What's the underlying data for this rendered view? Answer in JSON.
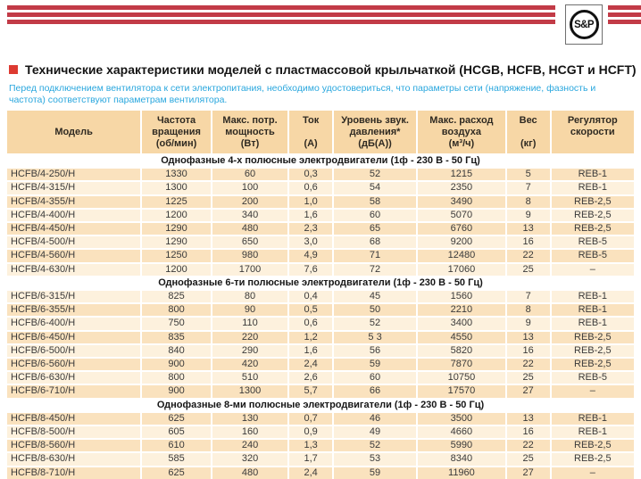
{
  "brand": {
    "logo_text": "S&P"
  },
  "colors": {
    "accent_red": "#c23b47",
    "bullet_red": "#dd3a31",
    "notice_blue": "#2aa7de",
    "header_bg": "#f7d7a6",
    "header_text": "#2f2a22",
    "row_dark": "#fae2be",
    "row_light": "#fdf1dd",
    "cell_text": "#3a3a3a",
    "section_text": "#161616"
  },
  "title": {
    "text": "Технические характеристики моделей с пластмассовой крыльчаткой (HCGB, HCFB, HCGT и HCFT)"
  },
  "notice": "Перед подключением вентилятора к сети электропитания, необходимо удостовериться, что параметры сети (напряжение, фазность и частота) соответствуют параметрам вентилятора.",
  "table": {
    "columns": [
      {
        "id": "model",
        "lines": [
          "Модель"
        ]
      },
      {
        "id": "rpm",
        "lines": [
          "Частота",
          "вращения",
          "(об/мин)"
        ]
      },
      {
        "id": "power",
        "lines": [
          "Макс. потр.",
          "мощность",
          "(Вт)"
        ]
      },
      {
        "id": "current",
        "lines": [
          "Ток",
          "",
          "(А)"
        ]
      },
      {
        "id": "noise",
        "lines": [
          "Уровень звук.",
          "давления*",
          "(дБ(А))"
        ]
      },
      {
        "id": "airflow",
        "lines": [
          "Макс. расход",
          "воздуха",
          "(м³/ч)"
        ]
      },
      {
        "id": "weight",
        "lines": [
          "Вес",
          "",
          "(кг)"
        ]
      },
      {
        "id": "regulator",
        "lines": [
          "Регулятор",
          "скорости",
          ""
        ]
      }
    ],
    "groups": [
      {
        "section": "Однофазные 4-х полюсные электродвигатели (1ф - 230 В - 50 Гц)",
        "rows": [
          [
            "HCFB/4-250/H",
            "1330",
            "60",
            "0,3",
            "52",
            "1215",
            "5",
            "REB-1"
          ],
          [
            "HCFB/4-315/H",
            "1300",
            "100",
            "0,6",
            "54",
            "2350",
            "7",
            "REB-1"
          ],
          [
            "HCFB/4-355/H",
            "1225",
            "200",
            "1,0",
            "58",
            "3490",
            "8",
            "REB-2,5"
          ],
          [
            "HCFB/4-400/H",
            "1200",
            "340",
            "1,6",
            "60",
            "5070",
            "9",
            "REB-2,5"
          ],
          [
            "HCFB/4-450/H",
            "1290",
            "480",
            "2,3",
            "65",
            "6760",
            "13",
            "REB-2,5"
          ],
          [
            "HCFB/4-500/H",
            "1290",
            "650",
            "3,0",
            "68",
            "9200",
            "16",
            "REB-5"
          ],
          [
            "HCFB/4-560/H",
            "1250",
            "980",
            "4,9",
            "71",
            "12480",
            "22",
            "REB-5"
          ],
          [
            "HCFB/4-630/H",
            "1200",
            "1700",
            "7,6",
            "72",
            "17060",
            "25",
            "–"
          ]
        ]
      },
      {
        "section": "Однофазные 6-ти полюсные электродвигатели (1ф - 230 В - 50 Гц)",
        "rows": [
          [
            "HCFB/6-315/H",
            "825",
            "80",
            "0,4",
            "45",
            "1560",
            "7",
            "REB-1"
          ],
          [
            "HCFB/6-355/H",
            "800",
            "90",
            "0,5",
            "50",
            "2210",
            "8",
            "REB-1"
          ],
          [
            "HCFB/6-400/H",
            "750",
            "110",
            "0,6",
            "52",
            "3400",
            "9",
            "REB-1"
          ],
          [
            "HCFB/6-450/H",
            "835",
            "220",
            "1,2",
            "5 3",
            "4550",
            "13",
            "REB-2,5"
          ],
          [
            "HCFB/6-500/H",
            "840",
            "290",
            "1,6",
            "56",
            "5820",
            "16",
            "REB-2,5"
          ],
          [
            "HCFB/6-560/H",
            "900",
            "420",
            "2,4",
            "59",
            "7870",
            "22",
            "REB-2,5"
          ],
          [
            "HCFB/6-630/H",
            "800",
            "510",
            "2,6",
            "60",
            "10750",
            "25",
            "REB-5"
          ],
          [
            "HCFB/6-710/H",
            "900",
            "1300",
            "5,7",
            "66",
            "17570",
            "27",
            "–"
          ]
        ]
      },
      {
        "section": "Однофазные 8-ми полюсные электродвигатели (1ф - 230 В - 50 Гц)",
        "rows": [
          [
            "HCFB/8-450/H",
            "625",
            "130",
            "0,7",
            "46",
            "3500",
            "13",
            "REB-1"
          ],
          [
            "HCFB/8-500/H",
            "605",
            "160",
            "0,9",
            "49",
            "4660",
            "16",
            "REB-1"
          ],
          [
            "HCFB/8-560/H",
            "610",
            "240",
            "1,3",
            "52",
            "5990",
            "22",
            "REB-2,5"
          ],
          [
            "HCFB/8-630/H",
            "585",
            "320",
            "1,7",
            "53",
            "8340",
            "25",
            "REB-2,5"
          ],
          [
            "HCFB/8-710/H",
            "625",
            "480",
            "2,4",
            "59",
            "11960",
            "27",
            "–"
          ]
        ]
      }
    ]
  }
}
